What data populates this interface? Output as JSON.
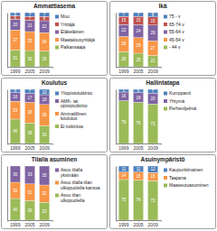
{
  "chart_data": [
    {
      "type": "bar",
      "title": "Ammattiasema",
      "stacked": true,
      "data_labels": true,
      "tick_labels": "x",
      "legend": "right",
      "categories": [
        "1999",
        "2005",
        "2009"
      ],
      "ylim": [
        0,
        100
      ],
      "series": [
        {
          "name": "Palkansaaja",
          "color": "#9bbb59",
          "values": [
            31,
            30,
            29
          ]
        },
        {
          "name": "Maatalousyrittäjä",
          "color": "#f79646",
          "values": [
            37,
            35,
            34
          ]
        },
        {
          "name": "Eläkeläinen",
          "color": "#8064a2",
          "values": [
            20,
            21,
            22
          ]
        },
        {
          "name": "Yrittäjä",
          "color": "#c0504d",
          "values": [
            6,
            7,
            8
          ]
        },
        {
          "name": "Muu",
          "color": "#4f81bd",
          "values": [
            6,
            7,
            7
          ]
        }
      ]
    },
    {
      "type": "bar",
      "title": "Ikä",
      "stacked": true,
      "data_labels": true,
      "tick_labels": "x",
      "legend": "right",
      "categories": [
        "1999",
        "2005",
        "2009"
      ],
      "ylim": [
        0,
        100
      ],
      "series": [
        {
          "name": "- 44 v",
          "color": "#9bbb59",
          "values": [
            28,
            25,
            21
          ]
        },
        {
          "name": "45-54 v",
          "color": "#f79646",
          "values": [
            28,
            29,
            27
          ]
        },
        {
          "name": "55-64 v",
          "color": "#8064a2",
          "values": [
            22,
            24,
            29
          ]
        },
        {
          "name": "65-74 v",
          "color": "#c0504d",
          "values": [
            15,
            15,
            15
          ]
        },
        {
          "name": "75 - v",
          "color": "#4f81bd",
          "values": [
            7,
            7,
            8
          ]
        }
      ]
    },
    {
      "type": "bar",
      "title": "Koulutus",
      "stacked": true,
      "data_labels": true,
      "tick_labels": "x",
      "legend": "right",
      "categories": [
        "1999",
        "2005",
        "2009"
      ],
      "ylim": [
        0,
        100
      ],
      "series": [
        {
          "name": "Ei tutkintoa",
          "color": "#9bbb59",
          "values": [
            45,
            38,
            33
          ]
        },
        {
          "name": "Ammatillinen koulutus",
          "color": "#f79646",
          "values": [
            33,
            38,
            39
          ]
        },
        {
          "name": "AMK- tai opistotutkinto",
          "color": "#8064a2",
          "values": [
            16,
            17,
            18
          ]
        },
        {
          "name": "Yliopistotutkinto",
          "color": "#4f81bd",
          "values": [
            6,
            7,
            10
          ]
        }
      ]
    },
    {
      "type": "bar",
      "title": "Hallintatapa",
      "stacked": true,
      "data_labels": true,
      "tick_labels": "x",
      "legend": "right",
      "categories": [
        "1999",
        "2005",
        "2009"
      ],
      "ylim": [
        0,
        100
      ],
      "series": [
        {
          "name": "Perheviljelmä",
          "color": "#9bbb59",
          "values": [
            79,
            76,
            73
          ]
        },
        {
          "name": "Yhtymä",
          "color": "#8064a2",
          "values": [
            16,
            18,
            20
          ]
        },
        {
          "name": "Kumppanit",
          "color": "#4f81bd",
          "values": [
            5,
            6,
            7
          ]
        }
      ]
    },
    {
      "type": "bar",
      "title": "Tilalla asuminen",
      "stacked": true,
      "data_labels": true,
      "tick_labels": "x",
      "legend": "right",
      "categories": [
        "1999",
        "2005",
        "2009"
      ],
      "ylim": [
        0,
        100
      ],
      "series": [
        {
          "name": "Asuu tilan ulkopuolella",
          "color": "#9bbb59",
          "values": [
            40,
            36,
            33
          ]
        },
        {
          "name": "Asuu tilalla tilan ulkopuolella kanssa",
          "color": "#f79646",
          "values": [
            30,
            31,
            32
          ]
        },
        {
          "name": "Asuu tilalla yksinään",
          "color": "#8064a2",
          "values": [
            30,
            33,
            35
          ]
        }
      ]
    },
    {
      "type": "bar",
      "title": "Asuinympäristö",
      "stacked": true,
      "data_labels": true,
      "tick_labels": "x",
      "legend": "right",
      "categories": [
        "1999",
        "2005",
        "2009"
      ],
      "ylim": [
        0,
        100
      ],
      "series": [
        {
          "name": "Maaseutuasuminen",
          "color": "#9bbb59",
          "values": [
            75,
            74,
            73
          ]
        },
        {
          "name": "Taajama",
          "color": "#f79646",
          "values": [
            14,
            15,
            15
          ]
        },
        {
          "name": "Kaupunkimainen",
          "color": "#4f81bd",
          "values": [
            11,
            11,
            12
          ]
        }
      ]
    }
  ]
}
